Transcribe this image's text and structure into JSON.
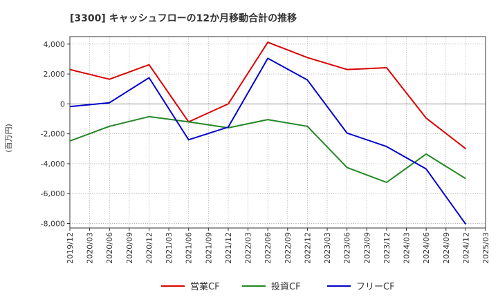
{
  "chart_data": {
    "type": "line",
    "title": "[3300]  キャッシュフローの12か月移動合計の推移",
    "ylabel": "(百万円)",
    "xlabel": "",
    "ylim": [
      -8300,
      4500
    ],
    "yticks": [
      4000,
      2000,
      0,
      -2000,
      -4000,
      -6000,
      -8000
    ],
    "ytick_labels": [
      "4,000",
      "2,000",
      "0",
      "-2,000",
      "-4,000",
      "-6,000",
      "-8,000"
    ],
    "x_ticks": [
      "2019/12",
      "2020/03",
      "2020/06",
      "2020/09",
      "2020/12",
      "2021/03",
      "2021/06",
      "2021/09",
      "2021/12",
      "2022/03",
      "2022/06",
      "2022/09",
      "2022/12",
      "2023/03",
      "2023/06",
      "2023/09",
      "2023/12",
      "2024/03",
      "2024/06",
      "2024/09",
      "2024/12",
      "2025/03"
    ],
    "x": [
      "2019/12",
      "2020/06",
      "2020/12",
      "2021/06",
      "2021/12",
      "2022/06",
      "2022/12",
      "2023/06",
      "2023/12",
      "2024/06",
      "2024/12"
    ],
    "series": [
      {
        "name": "営業CF",
        "color": "#dd0000",
        "values": [
          2300,
          1650,
          2620,
          -1200,
          0,
          4120,
          3100,
          2300,
          2420,
          -950,
          -3000
        ]
      },
      {
        "name": "投資CF",
        "color": "#228822",
        "values": [
          -2480,
          -1500,
          -850,
          -1200,
          -1600,
          -1050,
          -1500,
          -4250,
          -5250,
          -3350,
          -5000
        ]
      },
      {
        "name": "フリーCF",
        "color": "#0000cc",
        "values": [
          -180,
          80,
          1750,
          -2400,
          -1550,
          3050,
          1600,
          -1950,
          -2850,
          -4350,
          -8050
        ]
      }
    ],
    "grid": true,
    "legend": "bottom"
  }
}
